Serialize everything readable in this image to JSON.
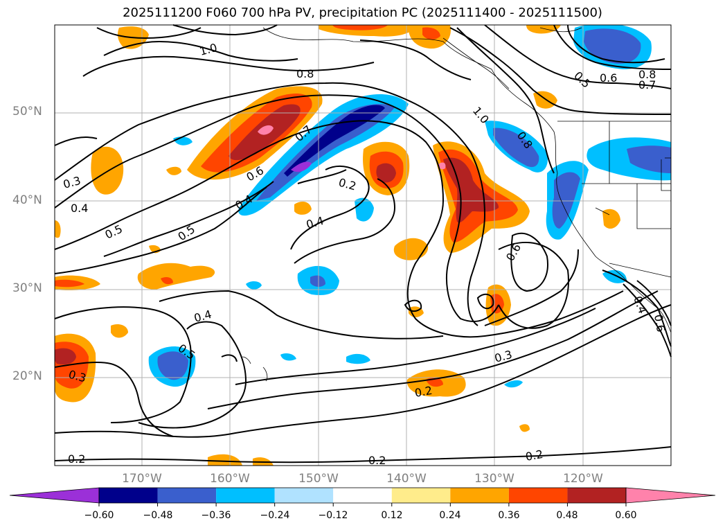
{
  "title": "2025111200 F060 700 hPa PV, precipitation PC (2025111400 - 2025111500)",
  "map": {
    "lat_labels": [
      "50°N",
      "40°N",
      "30°N",
      "20°N"
    ],
    "lon_labels": [
      "170°W",
      "160°W",
      "150°W",
      "140°W",
      "130°W",
      "120°W"
    ],
    "contour_labels": [
      "1.0",
      "0.8",
      "0.5",
      "0.6",
      "0.8",
      "0.7",
      "1.0",
      "0.8",
      "0.7",
      "0.6",
      "0.4",
      "0.5",
      "0.5",
      "0.2",
      "0.4",
      "0.4",
      "0.3",
      "0.6",
      "0.4",
      "0.5",
      "0.3",
      "0.3",
      "0.2",
      "0.2",
      "0.2",
      "0.2",
      "0.4",
      "0.6"
    ]
  },
  "colorbar": {
    "ticks": [
      "−0.60",
      "−0.48",
      "−0.36",
      "−0.24",
      "−0.12",
      "0.12",
      "0.24",
      "0.36",
      "0.48",
      "0.60"
    ],
    "colors": [
      "#9b30d8",
      "#00008b",
      "#3a5fcd",
      "#00bfff",
      "#b0e2ff",
      "#ffffff",
      "#ffec8b",
      "#ffa500",
      "#ff4500",
      "#b22222",
      "#ff82ab",
      "#ff82ab"
    ]
  }
}
